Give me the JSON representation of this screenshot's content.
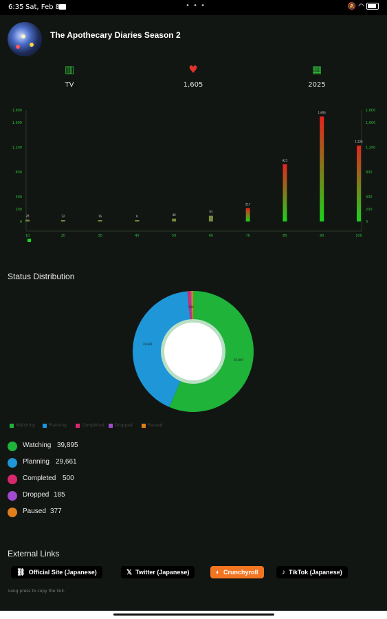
{
  "status_bar": {
    "time": "6:35",
    "date": "Sat, Feb 8",
    "dots": "• • •"
  },
  "header": {
    "title": "The Apothecary Diaries Season 2"
  },
  "stats": [
    {
      "icon": "film-icon",
      "value": "TV",
      "color": "#2fbf3a"
    },
    {
      "icon": "heart-icon",
      "value": "1,605",
      "color": "#e0342b"
    },
    {
      "icon": "calendar-icon",
      "value": "2025",
      "color": "#2fbf3a"
    }
  ],
  "chart_data": {
    "type": "bar",
    "title": "",
    "categories": [
      "10",
      "20",
      "30",
      "40",
      "50",
      "60",
      "70",
      "80",
      "90",
      "100"
    ],
    "series": [
      {
        "values": [
          28,
          12,
          16,
          6,
          46,
          93,
          217,
          925,
          1695,
          1226
        ]
      }
    ],
    "data_labels": [
      "28",
      "12",
      "16",
      "6",
      "46",
      "93",
      "217",
      "925",
      "1,695",
      "1,226"
    ],
    "y_ticks_left": [
      "1,800",
      "1,600",
      "1,200",
      "800",
      "400",
      "200",
      "0"
    ],
    "y_ticks_right": [
      "1,800",
      "1,600",
      "1,200",
      "800",
      "400",
      "200",
      "0"
    ],
    "ylim": [
      0,
      1800
    ],
    "colors": {
      "low": "#19d319",
      "high": "#e8231d"
    },
    "legend": "bottom-left",
    "grid": false
  },
  "status_section": {
    "title": "Status Distribution",
    "items": [
      {
        "name": "Watching",
        "count": "39,895",
        "value": 39895,
        "color": "#1fb33a"
      },
      {
        "name": "Planning",
        "count": "29,661",
        "value": 29661,
        "color": "#1e96d8"
      },
      {
        "name": "Completed",
        "count": "500",
        "value": 500,
        "color": "#d9286e"
      },
      {
        "name": "Dropped",
        "count": "185",
        "value": 185,
        "color": "#a04bd0"
      },
      {
        "name": "Paused",
        "count": "377",
        "value": 377,
        "color": "#e07f1c"
      }
    ],
    "donut_labels": {
      "watching": "39,895",
      "planning": "29,661",
      "completed": "500"
    }
  },
  "links_section": {
    "title": "External Links",
    "links": [
      {
        "icon": "link-icon",
        "label": "Official Site (Japanese)"
      },
      {
        "icon": "x-icon",
        "label": "Twitter (Japanese)"
      },
      {
        "icon": "crunchyroll-icon",
        "label": "Crunchyroll",
        "color": "#f47521"
      },
      {
        "icon": "tiktok-icon",
        "label": "TikTok (Japanese)"
      }
    ],
    "hint": "Long press to copy the link."
  }
}
